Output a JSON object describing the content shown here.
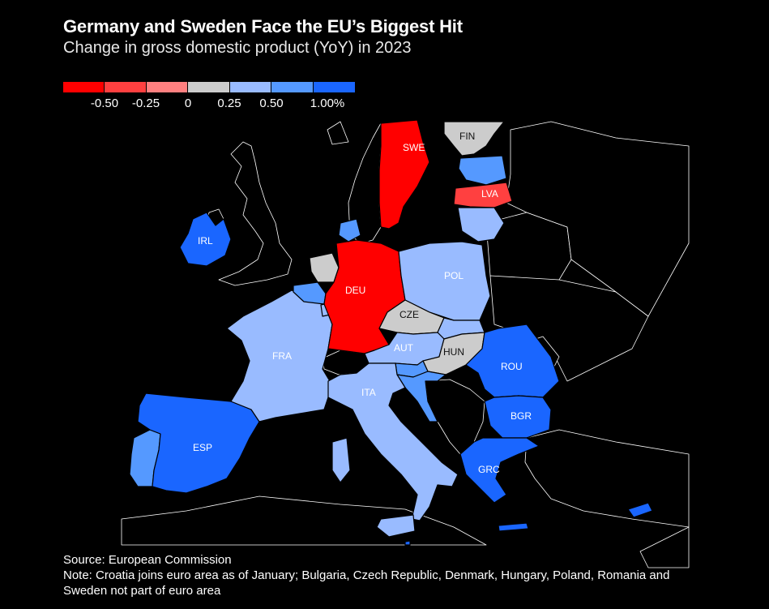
{
  "title": "Germany and Sweden Face the EU’s Biggest Hit",
  "subtitle": "Change in gross domestic product (YoY) in 2023",
  "legend": {
    "colors": [
      "#ff0000",
      "#ff4040",
      "#ff8080",
      "#cccccc",
      "#99bbff",
      "#5599ff",
      "#1a66ff"
    ],
    "ticks": [
      "-0.50",
      "-0.25",
      "0",
      "0.25",
      "0.50",
      "1.00%"
    ]
  },
  "colors": {
    "non_eu": "#000000",
    "border": "#000000",
    "outline": "#ffffff"
  },
  "countries": [
    {
      "code": "SWE",
      "value_bin": "< -0.50",
      "color": "#ff0000"
    },
    {
      "code": "DEU",
      "value_bin": "< -0.50",
      "color": "#ff0000"
    },
    {
      "code": "LVA",
      "value_bin": "-0.50 to -0.25",
      "color": "#ff4040"
    },
    {
      "code": "FIN",
      "value_bin": "0 to 0.25",
      "color": "#cccccc"
    },
    {
      "code": "CZE",
      "value_bin": "0 to 0.25",
      "color": "#cccccc"
    },
    {
      "code": "HUN",
      "value_bin": "0 to 0.25",
      "color": "#cccccc"
    },
    {
      "code": "NLD",
      "value_bin": "0 to 0.25",
      "color": "#cccccc"
    },
    {
      "code": "POL",
      "value_bin": "0.25 to 0.50",
      "color": "#99bbff"
    },
    {
      "code": "FRA",
      "value_bin": "0.25 to 0.50",
      "color": "#99bbff"
    },
    {
      "code": "AUT",
      "value_bin": "0.25 to 0.50",
      "color": "#99bbff"
    },
    {
      "code": "ITA",
      "value_bin": "0.25 to 0.50",
      "color": "#99bbff"
    },
    {
      "code": "LTU",
      "value_bin": "0.25 to 0.50",
      "color": "#99bbff"
    },
    {
      "code": "SVK",
      "value_bin": "0.25 to 0.50",
      "color": "#99bbff"
    },
    {
      "code": "PRT",
      "value_bin": "0.50 to 1.00",
      "color": "#5599ff"
    },
    {
      "code": "EST",
      "value_bin": "0.50 to 1.00",
      "color": "#5599ff"
    },
    {
      "code": "BEL",
      "value_bin": "0.50 to 1.00",
      "color": "#5599ff"
    },
    {
      "code": "DNK",
      "value_bin": "0.50 to 1.00",
      "color": "#5599ff"
    },
    {
      "code": "HRV",
      "value_bin": "0.50 to 1.00",
      "color": "#5599ff"
    },
    {
      "code": "SVN",
      "value_bin": "0.50 to 1.00",
      "color": "#5599ff"
    },
    {
      "code": "IRL",
      "value_bin": "> 1.00",
      "color": "#1a66ff"
    },
    {
      "code": "ESP",
      "value_bin": "> 1.00",
      "color": "#1a66ff"
    },
    {
      "code": "ROU",
      "value_bin": "> 1.00",
      "color": "#1a66ff"
    },
    {
      "code": "BGR",
      "value_bin": "> 1.00",
      "color": "#1a66ff"
    },
    {
      "code": "GRC",
      "value_bin": "> 1.00",
      "color": "#1a66ff"
    },
    {
      "code": "CYP",
      "value_bin": "> 1.00",
      "color": "#1a66ff"
    },
    {
      "code": "MLT",
      "value_bin": "> 1.00",
      "color": "#1a66ff"
    },
    {
      "code": "LUX",
      "value_bin": "0.25 to 0.50",
      "color": "#99bbff"
    }
  ],
  "labels": {
    "SWE": "SWE",
    "FIN": "FIN",
    "LVA": "LVA",
    "IRL": "IRL",
    "POL": "POL",
    "DEU": "DEU",
    "CZE": "CZE",
    "FRA": "FRA",
    "AUT": "AUT",
    "HUN": "HUN",
    "ROU": "ROU",
    "ITA": "ITA",
    "BGR": "BGR",
    "ESP": "ESP",
    "GRC": "GRC"
  },
  "footer": {
    "source": "Source: European Commission",
    "note": "Note: Croatia joins euro area as of January; Bulgaria, Czech Republic, Denmark, Hungary, Poland, Romania and Sweden not part of euro area"
  }
}
